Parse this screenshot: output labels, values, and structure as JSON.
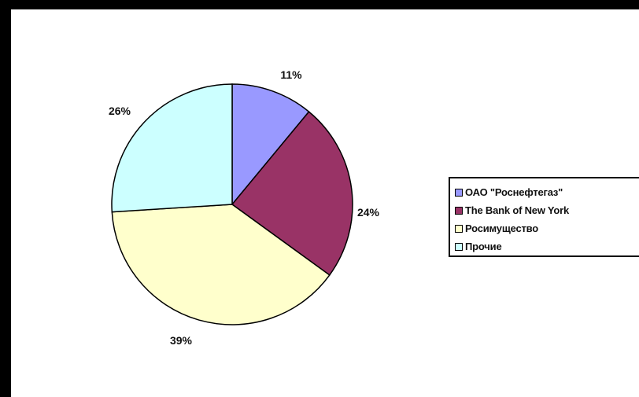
{
  "chart_data": {
    "type": "pie",
    "categories": [
      "ОАО \"Роснефтегаз\"",
      "The Bank of New York",
      "Росимущество",
      "Прочие"
    ],
    "values": [
      11,
      24,
      39,
      26
    ],
    "data_labels": [
      "11%",
      "24%",
      "39%",
      "26%"
    ],
    "colors": [
      "#9999ff",
      "#993366",
      "#ffffcc",
      "#ccffff"
    ],
    "start_angle_deg": 0,
    "direction": "clockwise",
    "legend_position": "right"
  },
  "legend": {
    "items": [
      {
        "label": "ОАО \"Роснефтегаз\"",
        "color": "#9999ff"
      },
      {
        "label": "The Bank of New York",
        "color": "#993366"
      },
      {
        "label": "Росимущество",
        "color": "#ffffcc"
      },
      {
        "label": "Прочие",
        "color": "#ccffff"
      }
    ]
  }
}
